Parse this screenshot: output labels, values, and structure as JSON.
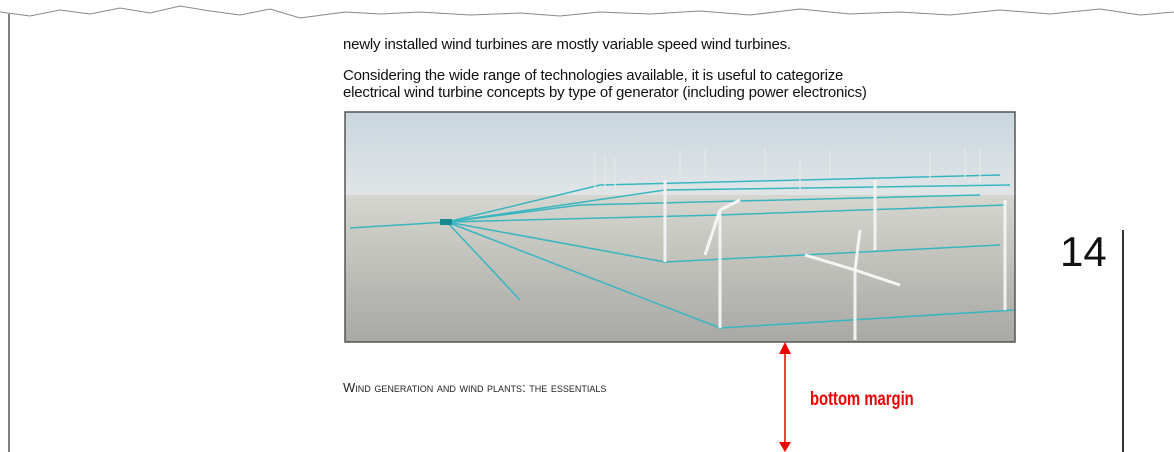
{
  "body": {
    "line": "newly installed wind turbines are mostly variable speed wind turbines.",
    "paragraph": [
      "Considering the wide range of technologies available, it is useful to categorize",
      "electrical wind turbine concepts by type of generator (including power electronics)"
    ]
  },
  "page_number": "14",
  "footer": "Wind generation and wind plants: the essentials",
  "annotation": "bottom margin"
}
